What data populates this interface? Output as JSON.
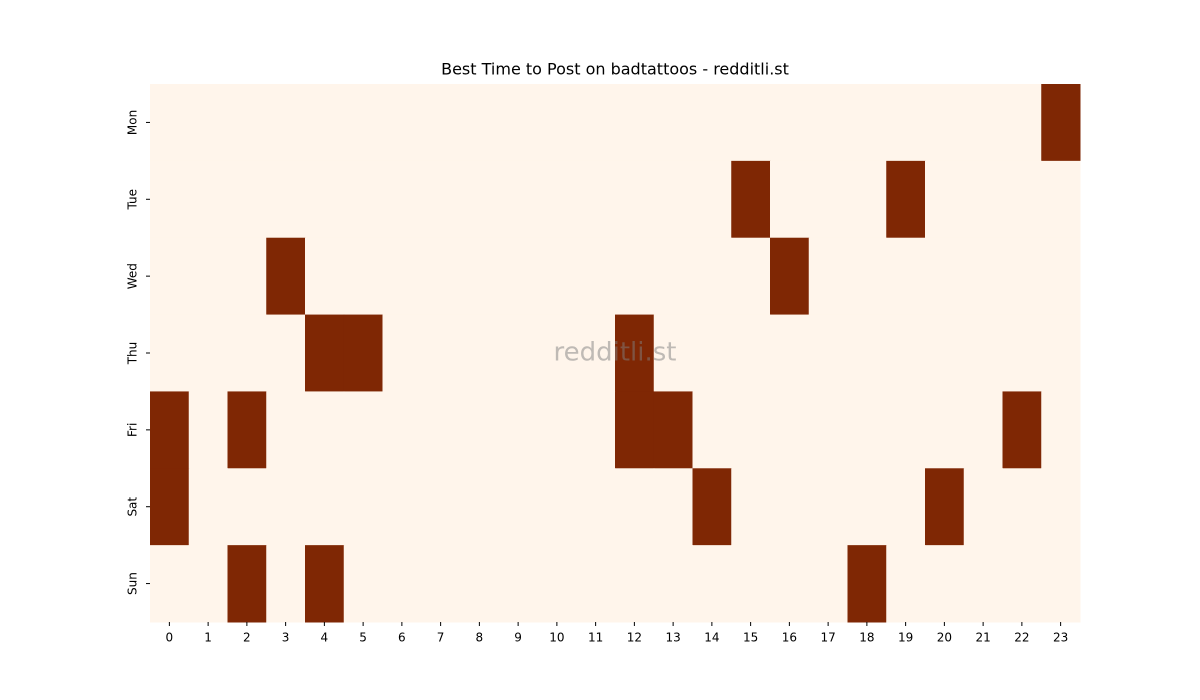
{
  "chart_data": {
    "type": "heatmap",
    "title": "Best Time to Post on badtattoos - redditli.st",
    "watermark": "redditli.st",
    "x": [
      0,
      1,
      2,
      3,
      4,
      5,
      6,
      7,
      8,
      9,
      10,
      11,
      12,
      13,
      14,
      15,
      16,
      17,
      18,
      19,
      20,
      21,
      22,
      23
    ],
    "y": [
      "Mon",
      "Tue",
      "Wed",
      "Thu",
      "Fri",
      "Sat",
      "Sun"
    ],
    "colors": [
      "#fff5eb",
      "#7f2704"
    ],
    "values": [
      [
        0,
        0,
        0,
        0,
        0,
        0,
        0,
        0,
        0,
        0,
        0,
        0,
        0,
        0,
        0,
        0,
        0,
        0,
        0,
        0,
        0,
        0,
        0,
        1
      ],
      [
        0,
        0,
        0,
        0,
        0,
        0,
        0,
        0,
        0,
        0,
        0,
        0,
        0,
        0,
        0,
        1,
        0,
        0,
        0,
        1,
        0,
        0,
        0,
        0
      ],
      [
        0,
        0,
        0,
        1,
        0,
        0,
        0,
        0,
        0,
        0,
        0,
        0,
        0,
        0,
        0,
        0,
        1,
        0,
        0,
        0,
        0,
        0,
        0,
        0
      ],
      [
        0,
        0,
        0,
        0,
        1,
        1,
        0,
        0,
        0,
        0,
        0,
        0,
        1,
        0,
        0,
        0,
        0,
        0,
        0,
        0,
        0,
        0,
        0,
        0
      ],
      [
        1,
        0,
        1,
        0,
        0,
        0,
        0,
        0,
        0,
        0,
        0,
        0,
        1,
        1,
        0,
        0,
        0,
        0,
        0,
        0,
        0,
        0,
        1,
        0
      ],
      [
        1,
        0,
        0,
        0,
        0,
        0,
        0,
        0,
        0,
        0,
        0,
        0,
        0,
        0,
        1,
        0,
        0,
        0,
        0,
        0,
        1,
        0,
        0,
        0
      ],
      [
        0,
        0,
        1,
        0,
        1,
        0,
        0,
        0,
        0,
        0,
        0,
        0,
        0,
        0,
        0,
        0,
        0,
        0,
        1,
        0,
        0,
        0,
        0,
        0
      ]
    ]
  }
}
